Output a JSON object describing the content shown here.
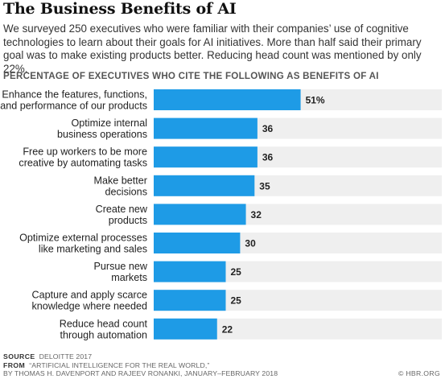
{
  "header": {
    "title": "The Business Benefits of AI",
    "intro": "We surveyed 250 executives who were familiar with their companies’ use of cognitive technologies to learn about their goals for AI initiatives. More than half said their primary goal was to make existing products better. Reducing head count was mentioned by only 22%."
  },
  "chart_data": {
    "type": "bar",
    "orientation": "horizontal",
    "title": "PERCENTAGE OF EXECUTIVES WHO CITE THE FOLLOWING AS BENEFITS OF AI",
    "categories": [
      [
        "Enhance the features, functions,",
        "and performance of our products"
      ],
      [
        "Optimize internal",
        "business operations"
      ],
      [
        "Free up workers to be more",
        "creative by automating tasks"
      ],
      [
        "Make better",
        "decisions"
      ],
      [
        "Create new",
        "products"
      ],
      [
        "Optimize external processes",
        "like marketing and sales"
      ],
      [
        "Pursue new",
        "markets"
      ],
      [
        "Capture and apply scarce",
        "knowledge where needed"
      ],
      [
        "Reduce head count",
        "through automation"
      ]
    ],
    "values": [
      51,
      36,
      36,
      35,
      32,
      30,
      25,
      25,
      22
    ],
    "value_labels": [
      "51%",
      "36",
      "36",
      "35",
      "32",
      "30",
      "25",
      "25",
      "22"
    ],
    "xlim": [
      0,
      100
    ],
    "grid": false,
    "bar_color": "#1e9be6",
    "track_color": "#efefef"
  },
  "footer": {
    "source_label": "SOURCE",
    "source_text": "DELOITTE 2017",
    "from_label": "FROM",
    "from_text": "“ARTIFICIAL INTELLIGENCE FOR THE REAL WORLD,”",
    "byline": "BY THOMAS H. DAVENPORT AND RAJEEV RONANKI, JANUARY–FEBRUARY 2018",
    "credit": "© HBR.ORG"
  }
}
